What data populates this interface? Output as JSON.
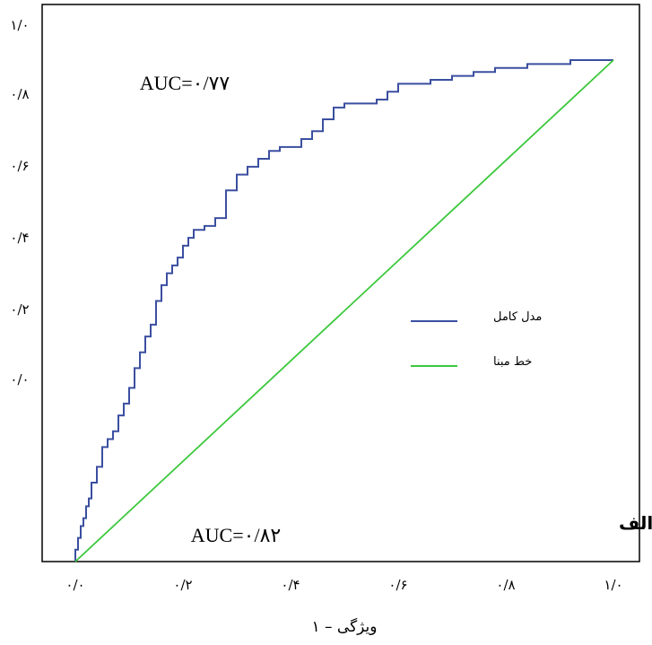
{
  "chart_data": {
    "type": "line",
    "title": "",
    "panel_label": "الف",
    "xlabel": "ویژگی – ۱",
    "ylabel": "",
    "xlim": [
      0,
      1
    ],
    "ylim": [
      -0.4,
      1.0
    ],
    "x_tick_values": [
      0,
      0.2,
      0.4,
      0.6,
      0.8,
      1.0
    ],
    "x_tick_labels": [
      "۰/۰",
      "۰/۲",
      "۰/۴",
      "۰/۶",
      "۰/۸",
      "۱/۰"
    ],
    "y_tick_values": [
      0.0,
      0.2,
      0.4,
      0.6,
      0.8,
      1.0
    ],
    "y_tick_labels": [
      "۰/۰",
      "۰/۲",
      "۰/۴",
      "۰/۶",
      "۰/۸",
      "۱/۰"
    ],
    "grid": false,
    "legend_position": "center-right",
    "annotations": [
      {
        "text": "AUC=۰/۷۷",
        "x": 0.12,
        "y": 0.83
      },
      {
        "text": "AUC=۰/۸۲",
        "x": 0.2,
        "y": -0.34
      }
    ],
    "series": [
      {
        "name": "مدل کامل",
        "color": "#3b4fa0",
        "style": "step",
        "x": [
          0.0,
          0.005,
          0.01,
          0.015,
          0.02,
          0.025,
          0.03,
          0.04,
          0.05,
          0.06,
          0.07,
          0.08,
          0.09,
          0.1,
          0.11,
          0.12,
          0.13,
          0.14,
          0.15,
          0.16,
          0.17,
          0.18,
          0.19,
          0.2,
          0.21,
          0.22,
          0.24,
          0.26,
          0.28,
          0.3,
          0.32,
          0.34,
          0.36,
          0.38,
          0.4,
          0.42,
          0.44,
          0.46,
          0.48,
          0.5,
          0.52,
          0.54,
          0.56,
          0.58,
          0.6,
          0.62,
          0.64,
          0.66,
          0.68,
          0.7,
          0.72,
          0.74,
          0.76,
          0.78,
          0.8,
          0.82,
          0.84,
          0.86,
          0.88,
          0.9,
          0.92,
          0.94,
          0.96,
          0.98,
          1.0
        ],
        "y": [
          -0.4,
          -0.37,
          -0.34,
          -0.31,
          -0.29,
          -0.26,
          -0.24,
          -0.2,
          -0.16,
          -0.11,
          -0.09,
          -0.07,
          -0.03,
          0.0,
          0.04,
          0.09,
          0.13,
          0.17,
          0.2,
          0.26,
          0.3,
          0.33,
          0.35,
          0.37,
          0.4,
          0.42,
          0.44,
          0.45,
          0.47,
          0.54,
          0.58,
          0.6,
          0.62,
          0.64,
          0.65,
          0.65,
          0.67,
          0.69,
          0.72,
          0.75,
          0.76,
          0.76,
          0.76,
          0.77,
          0.79,
          0.81,
          0.81,
          0.81,
          0.82,
          0.82,
          0.83,
          0.83,
          0.84,
          0.84,
          0.85,
          0.85,
          0.85,
          0.86,
          0.86,
          0.86,
          0.86,
          0.87,
          0.87,
          0.87,
          0.87
        ]
      },
      {
        "name": "خط مبنا",
        "color": "#3cc83c",
        "style": "line",
        "x": [
          0.0,
          1.0
        ],
        "y": [
          -0.4,
          0.87
        ]
      }
    ]
  }
}
